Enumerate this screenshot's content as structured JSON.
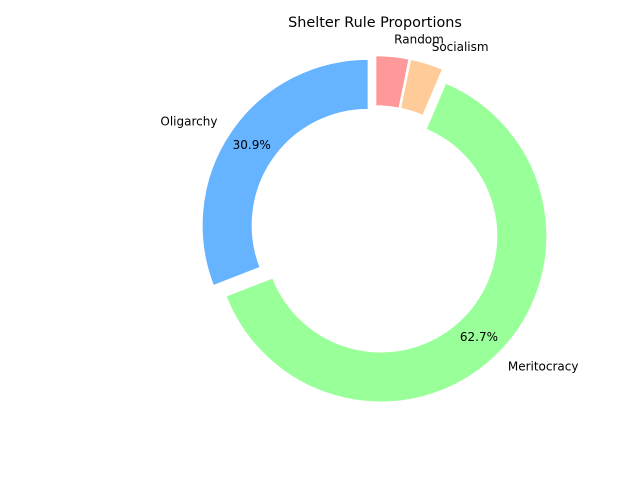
{
  "chart_data": {
    "type": "pie",
    "title": "Shelter Rule Proportions",
    "donut": true,
    "start_angle_deg": 90,
    "direction": "clockwise",
    "slices": [
      {
        "label": "Random",
        "value": 3.2,
        "pct_label": "",
        "color": "#ff9999"
      },
      {
        "label": "Socialism",
        "value": 3.2,
        "pct_label": "",
        "color": "#ffcc99"
      },
      {
        "label": "Meritocracy",
        "value": 62.7,
        "pct_label": "62.7%",
        "color": "#99ff99"
      },
      {
        "label": "Oligarchy",
        "value": 30.9,
        "pct_label": "30.9%",
        "color": "#66b3ff"
      }
    ],
    "explode": [
      0.05,
      0.05,
      0.05,
      0.05
    ],
    "legend": "none",
    "grid": false
  }
}
